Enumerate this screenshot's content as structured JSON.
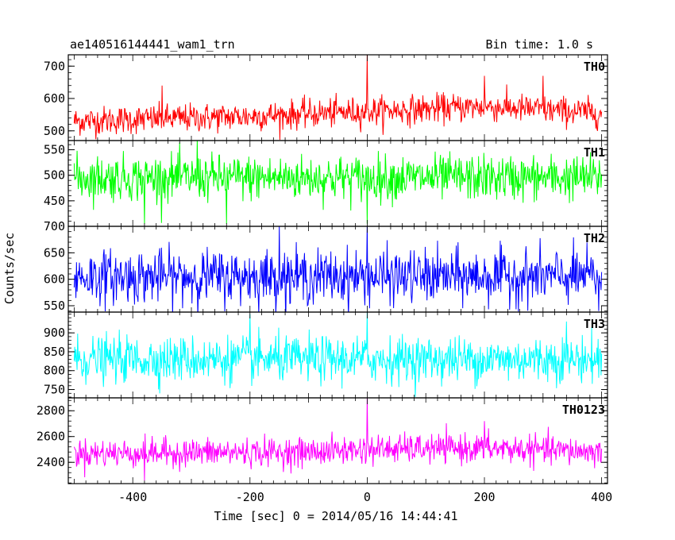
{
  "header": {
    "object_name": "ae140516144441_wam1_trn",
    "bin_time": "Bin time: 1.0 s"
  },
  "chart_data": {
    "type": "line",
    "title": "ae140516144441_wam1_trn",
    "subtitle": "Bin time: 1.0 s",
    "xlabel": "Time [sec] 0 = 2014/05/16 14:44:41",
    "ylabel": "Counts/sec",
    "xlim": [
      -510,
      410
    ],
    "x_ticks": [
      -400,
      -200,
      0,
      200,
      400
    ],
    "x_range_data": [
      -500,
      400
    ],
    "x_step": 1,
    "panels": [
      {
        "name": "TH0",
        "color": "#ff0000",
        "ylim": [
          470,
          735
        ],
        "y_ticks": [
          500,
          600,
          700
        ],
        "baseline": [
          [
            -500,
            530
          ],
          [
            -200,
            545
          ],
          [
            0,
            560
          ],
          [
            200,
            575
          ],
          [
            400,
            555
          ]
        ],
        "noise_sd": 22,
        "spikes": [
          {
            "x": -350,
            "y": 640
          },
          {
            "x": 0,
            "y": 735
          },
          {
            "x": 200,
            "y": 670
          },
          {
            "x": 300,
            "y": 670
          }
        ]
      },
      {
        "name": "TH1",
        "color": "#00ff00",
        "ylim": [
          400,
          568
        ],
        "y_ticks": [
          450,
          500,
          550
        ],
        "baseline": [
          [
            -500,
            495
          ],
          [
            400,
            495
          ]
        ],
        "noise_sd": 22,
        "spikes": [
          {
            "x": -290,
            "y": 570
          },
          {
            "x": -240,
            "y": 570
          },
          {
            "x": -380,
            "y": 405
          },
          {
            "x": -240,
            "y": 405
          },
          {
            "x": 0,
            "y": 405
          }
        ]
      },
      {
        "name": "TH2",
        "color": "#0000ff",
        "ylim": [
          538,
          700
        ],
        "y_ticks": [
          550,
          600,
          650,
          700
        ],
        "baseline": [
          [
            -500,
            605
          ],
          [
            400,
            605
          ]
        ],
        "noise_sd": 25,
        "spikes": [
          {
            "x": 0,
            "y": 705
          },
          {
            "x": -150,
            "y": 700
          },
          {
            "x": 395,
            "y": 540
          }
        ]
      },
      {
        "name": "TH3",
        "color": "#00ffff",
        "ylim": [
          728,
          955
        ],
        "y_ticks": [
          750,
          800,
          850,
          900
        ],
        "baseline": [
          [
            -500,
            830
          ],
          [
            400,
            830
          ]
        ],
        "noise_sd": 30,
        "spikes": [
          {
            "x": 0,
            "y": 955
          },
          {
            "x": -200,
            "y": 950
          },
          {
            "x": 340,
            "y": 930
          }
        ]
      },
      {
        "name": "TH0123",
        "color": "#ff00ff",
        "ylim": [
          2235,
          2900
        ],
        "y_ticks": [
          2400,
          2600,
          2800
        ],
        "baseline": [
          [
            -500,
            2470
          ],
          [
            -100,
            2480
          ],
          [
            0,
            2500
          ],
          [
            200,
            2510
          ],
          [
            400,
            2480
          ]
        ],
        "noise_sd": 55,
        "spikes": [
          {
            "x": 0,
            "y": 2900
          },
          {
            "x": 200,
            "y": 2720
          },
          {
            "x": -380,
            "y": 2260
          }
        ]
      }
    ]
  }
}
